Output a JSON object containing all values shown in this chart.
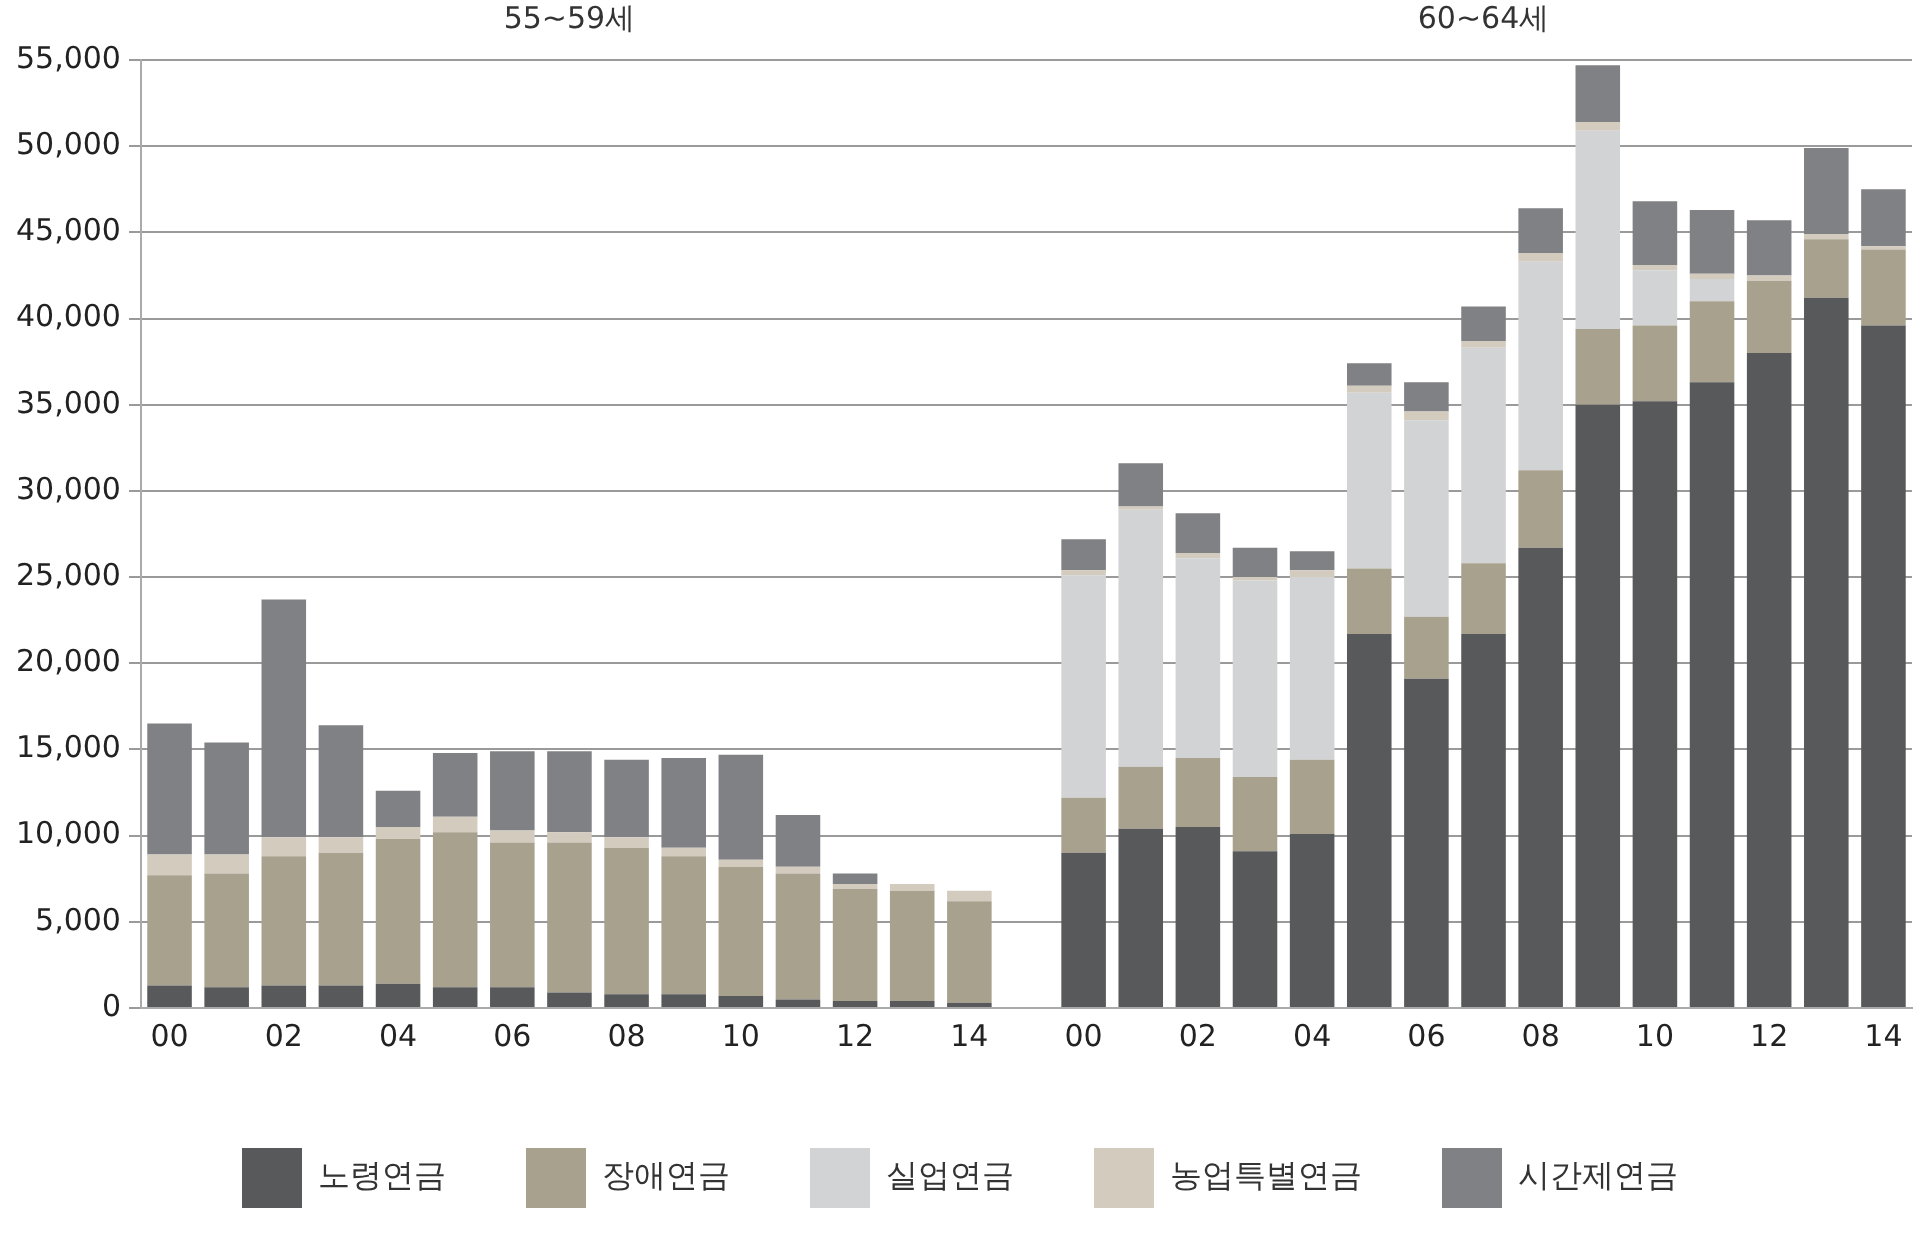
{
  "chart_data": {
    "type": "bar",
    "stacked": true,
    "grid": "y",
    "legend": "bottom",
    "annotations": [
      "55~59세",
      "60~64세"
    ],
    "categories": [
      "00",
      null,
      "02",
      null,
      "04",
      null,
      "06",
      null,
      "08",
      null,
      "10",
      null,
      "12",
      null,
      "14",
      null,
      "00",
      null,
      "02",
      null,
      "04",
      null,
      "06",
      null,
      "08",
      null,
      "10",
      null,
      "12",
      null,
      "14"
    ],
    "ylim": [
      0,
      55000
    ],
    "yticks": [
      0,
      {
        "value": 5000,
        "label": "5,000"
      },
      {
        "value": 10000,
        "label": "10,000"
      },
      {
        "value": 15000,
        "label": "15,000"
      },
      {
        "value": 20000,
        "label": "20,000"
      },
      {
        "value": 25000,
        "label": "25,000"
      },
      {
        "value": 30000,
        "label": "30,000"
      },
      {
        "value": 35000,
        "label": "35,000"
      },
      {
        "value": 40000,
        "label": "40,000"
      },
      {
        "value": 45000,
        "label": "45,000"
      },
      {
        "value": 50000,
        "label": "50,000"
      },
      {
        "value": 55000,
        "label": "55,000"
      }
    ],
    "series": [
      {
        "name": "노령연금",
        "color": "#58595b",
        "values": [
          1300,
          1200,
          1300,
          1300,
          1400,
          1200,
          1200,
          900,
          800,
          800,
          700,
          500,
          400,
          400,
          300,
          null,
          9000,
          10400,
          10500,
          9100,
          10100,
          21700,
          19100,
          21700,
          26700,
          35000,
          35200,
          36300,
          38000,
          41200,
          39600
        ]
      },
      {
        "name": "장애연금",
        "color": "#a8a18e",
        "values": [
          6400,
          6600,
          7500,
          7700,
          8400,
          9000,
          8400,
          8700,
          8500,
          8000,
          7500,
          7300,
          6500,
          6400,
          5900,
          null,
          3200,
          3600,
          4000,
          4300,
          4300,
          3800,
          3600,
          4100,
          4500,
          4400,
          4400,
          4700,
          4200,
          3400,
          4400
        ]
      },
      {
        "name": "실업연금",
        "color": "#d1d3d4",
        "values": [
          0,
          0,
          0,
          0,
          0,
          0,
          0,
          0,
          0,
          0,
          0,
          0,
          0,
          0,
          0,
          null,
          12900,
          14900,
          11600,
          11400,
          10600,
          10200,
          11400,
          12500,
          12100,
          11500,
          3200,
          1300,
          0,
          0,
          0
        ]
      },
      {
        "name": "농업특별연금",
        "color": "#d4cbbf",
        "values": [
          1200,
          1100,
          1100,
          900,
          700,
          900,
          700,
          600,
          600,
          500,
          400,
          400,
          300,
          400,
          600,
          null,
          300,
          200,
          300,
          200,
          400,
          400,
          500,
          400,
          500,
          500,
          300,
          300,
          300,
          300,
          200
        ]
      },
      {
        "name": "시간제연금",
        "color": "#808184",
        "values": [
          7600,
          6500,
          13800,
          6500,
          2100,
          3700,
          4600,
          4700,
          4500,
          5200,
          6100,
          3000,
          600,
          0,
          0,
          null,
          1800,
          2500,
          2300,
          1700,
          1100,
          1300,
          1700,
          2000,
          2600,
          3300,
          3700,
          3700,
          3200,
          5000,
          3300
        ]
      }
    ]
  }
}
